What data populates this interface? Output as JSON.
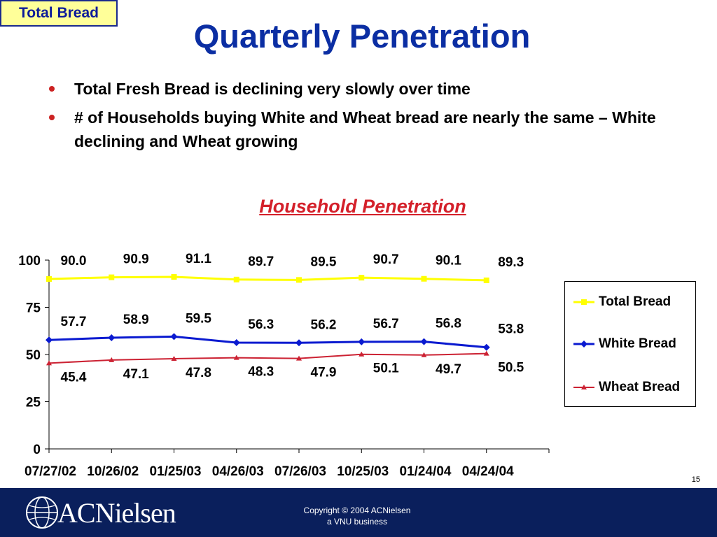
{
  "tag": "Total Bread",
  "title": "Quarterly Penetration",
  "bullets": [
    "Total Fresh Bread is declining very slowly over time",
    "# of Households buying White and Wheat bread are nearly the same – White declining and Wheat growing"
  ],
  "chart_title": "Household Penetration",
  "chart_data": {
    "type": "line",
    "title": "Household Penetration",
    "categories": [
      "07/27/02",
      "10/26/02",
      "01/25/03",
      "04/26/03",
      "07/26/03",
      "10/25/03",
      "01/24/04",
      "04/24/04"
    ],
    "ylim": [
      0,
      100
    ],
    "yticks": [
      0,
      25,
      50,
      75,
      100
    ],
    "grid": false,
    "legend_position": "right",
    "series": [
      {
        "name": "Total Bread",
        "color": "#ffff00",
        "marker": "square",
        "values": [
          90.0,
          90.9,
          91.1,
          89.7,
          89.5,
          90.7,
          90.1,
          89.3
        ],
        "labels": [
          "90.0",
          "90.9",
          "91.1",
          "89.7",
          "89.5",
          "90.7",
          "90.1",
          "89.3"
        ]
      },
      {
        "name": "White Bread",
        "color": "#0a1ad0",
        "marker": "diamond",
        "values": [
          57.7,
          58.9,
          59.5,
          56.3,
          56.2,
          56.7,
          56.8,
          53.8
        ],
        "labels": [
          "57.7",
          "58.9",
          "59.5",
          "56.3",
          "56.2",
          "56.7",
          "56.8",
          "53.8"
        ]
      },
      {
        "name": "Wheat Bread",
        "color": "#cc2233",
        "marker": "triangle",
        "values": [
          45.4,
          47.1,
          47.8,
          48.3,
          47.9,
          50.1,
          49.7,
          50.5
        ],
        "labels": [
          "45.4",
          "47.1",
          "47.8",
          "48.3",
          "47.9",
          "50.1",
          "49.7",
          "50.5"
        ]
      }
    ]
  },
  "page_number": "15",
  "footer": {
    "logo_text": "ACNielsen",
    "copyright": "Copyright © 2004 ACNielsen",
    "tagline": "a VNU business"
  }
}
